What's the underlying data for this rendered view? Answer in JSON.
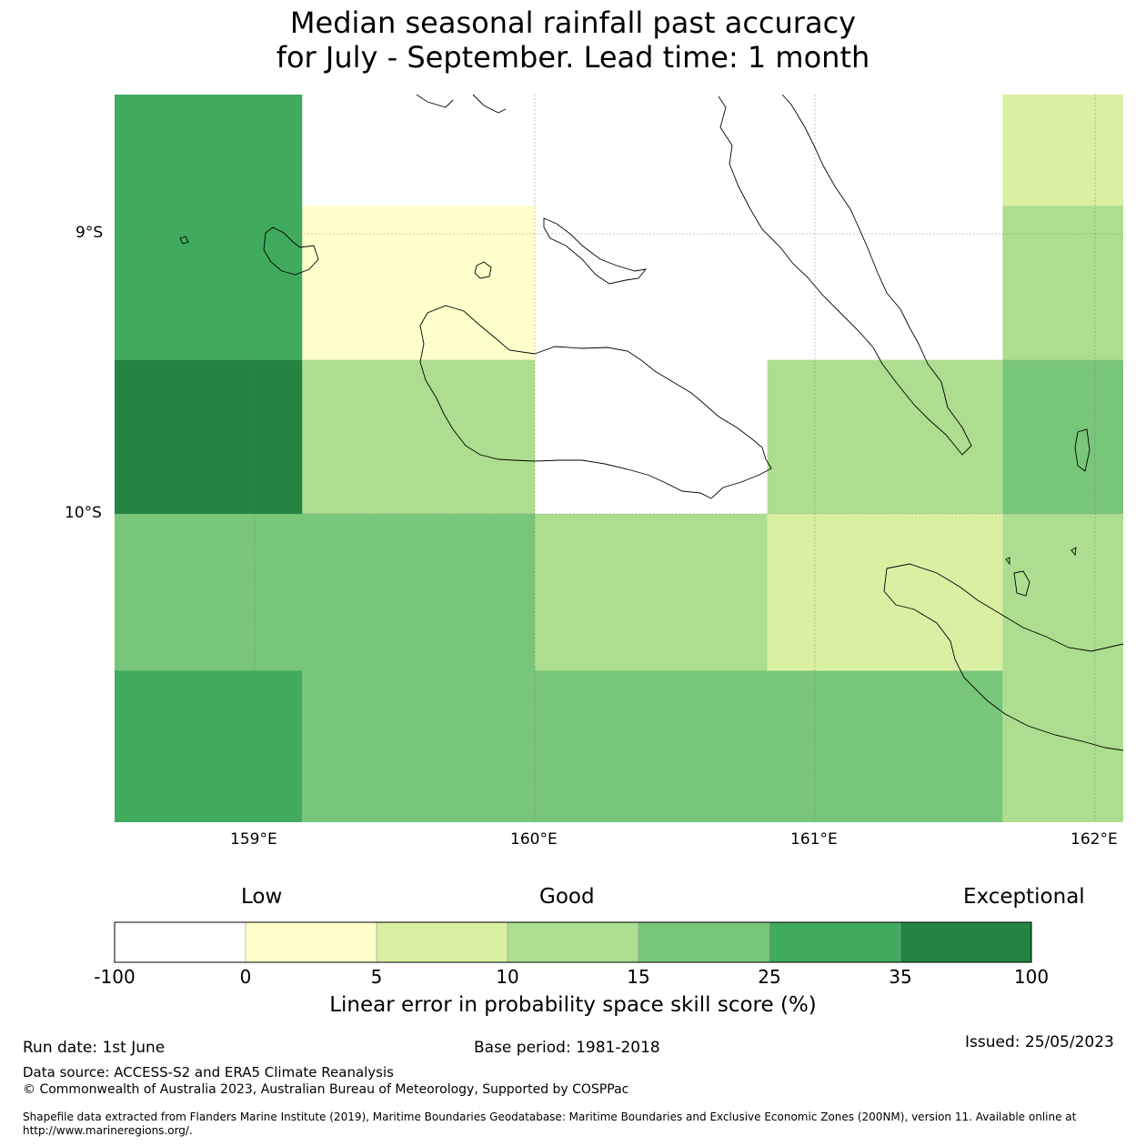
{
  "title": {
    "line1": "Median seasonal rainfall past accuracy",
    "line2": "for July - September. Lead time: 1 month"
  },
  "map": {
    "lat_labels": [
      "9°S",
      "10°S"
    ],
    "lon_labels": [
      "159°E",
      "160°E",
      "161°E",
      "162°E"
    ],
    "extent": {
      "lon": [
        158.5,
        162.1
      ],
      "lat": [
        -8.5,
        -11.1
      ]
    },
    "grid_cells": [
      {
        "lon": [
          158.5,
          159.17
        ],
        "lat": [
          -8.5,
          -9.45
        ],
        "bin": "25-35"
      },
      {
        "lon": [
          159.17,
          160.0
        ],
        "lat": [
          -8.5,
          -8.9
        ],
        "bin": "-100-0"
      },
      {
        "lon": [
          159.17,
          160.0
        ],
        "lat": [
          -8.9,
          -9.45
        ],
        "bin": "0-5"
      },
      {
        "lon": [
          160.0,
          161.67
        ],
        "lat": [
          -8.5,
          -9.45
        ],
        "bin": "-100-0"
      },
      {
        "lon": [
          161.67,
          162.1
        ],
        "lat": [
          -8.5,
          -8.9
        ],
        "bin": "5-10"
      },
      {
        "lon": [
          161.67,
          162.1
        ],
        "lat": [
          -8.9,
          -9.45
        ],
        "bin": "10-15"
      },
      {
        "lon": [
          158.5,
          159.17
        ],
        "lat": [
          -9.45,
          -10.0
        ],
        "bin": "35-100"
      },
      {
        "lon": [
          159.17,
          160.0
        ],
        "lat": [
          -9.45,
          -10.0
        ],
        "bin": "10-15"
      },
      {
        "lon": [
          160.0,
          160.83
        ],
        "lat": [
          -9.45,
          -10.0
        ],
        "bin": "-100-0"
      },
      {
        "lon": [
          160.83,
          161.67
        ],
        "lat": [
          -9.45,
          -10.0
        ],
        "bin": "10-15"
      },
      {
        "lon": [
          161.67,
          162.1
        ],
        "lat": [
          -9.45,
          -10.0
        ],
        "bin": "15-25"
      },
      {
        "lon": [
          158.5,
          160.0
        ],
        "lat": [
          -10.0,
          -10.56
        ],
        "bin": "15-25"
      },
      {
        "lon": [
          160.0,
          160.83
        ],
        "lat": [
          -10.0,
          -10.56
        ],
        "bin": "10-15"
      },
      {
        "lon": [
          160.83,
          161.67
        ],
        "lat": [
          -10.0,
          -10.56
        ],
        "bin": "5-10"
      },
      {
        "lon": [
          161.67,
          162.1
        ],
        "lat": [
          -10.0,
          -11.1
        ],
        "bin": "10-15"
      },
      {
        "lon": [
          158.5,
          159.17
        ],
        "lat": [
          -10.56,
          -11.1
        ],
        "bin": "25-35"
      },
      {
        "lon": [
          159.17,
          161.67
        ],
        "lat": [
          -10.56,
          -11.1
        ],
        "bin": "15-25"
      }
    ]
  },
  "colorbar": {
    "top_labels": [
      "Low",
      "Good",
      "Exceptional"
    ],
    "ticks": [
      "-100",
      "0",
      "5",
      "10",
      "15",
      "25",
      "35",
      "100"
    ],
    "colors": [
      "#ffffff",
      "#ffffcc",
      "#d9f0a3",
      "#addd8e",
      "#78c679",
      "#41ab5d",
      "#238443"
    ],
    "label": "Linear error in probability space skill score (%)"
  },
  "footer": {
    "run_date": "Run date: 1st June",
    "base_period": "Base period: 1981-2018",
    "issued": "Issued: 25/05/2023",
    "data_source": "Data source: ACCESS-S2 and ERA5 Climate Reanalysis",
    "copyright": "© Commonwealth of Australia 2023, Australian Bureau of Meteorology, Supported by COSPPac",
    "shapefile_line1": "Shapefile data extracted from Flanders Marine Institute (2019), Maritime Boundaries Geodatabase: Maritime Boundaries and Exclusive Economic Zones (200NM), version 11. Available online at",
    "shapefile_line2": "http://www.marineregions.org/."
  }
}
